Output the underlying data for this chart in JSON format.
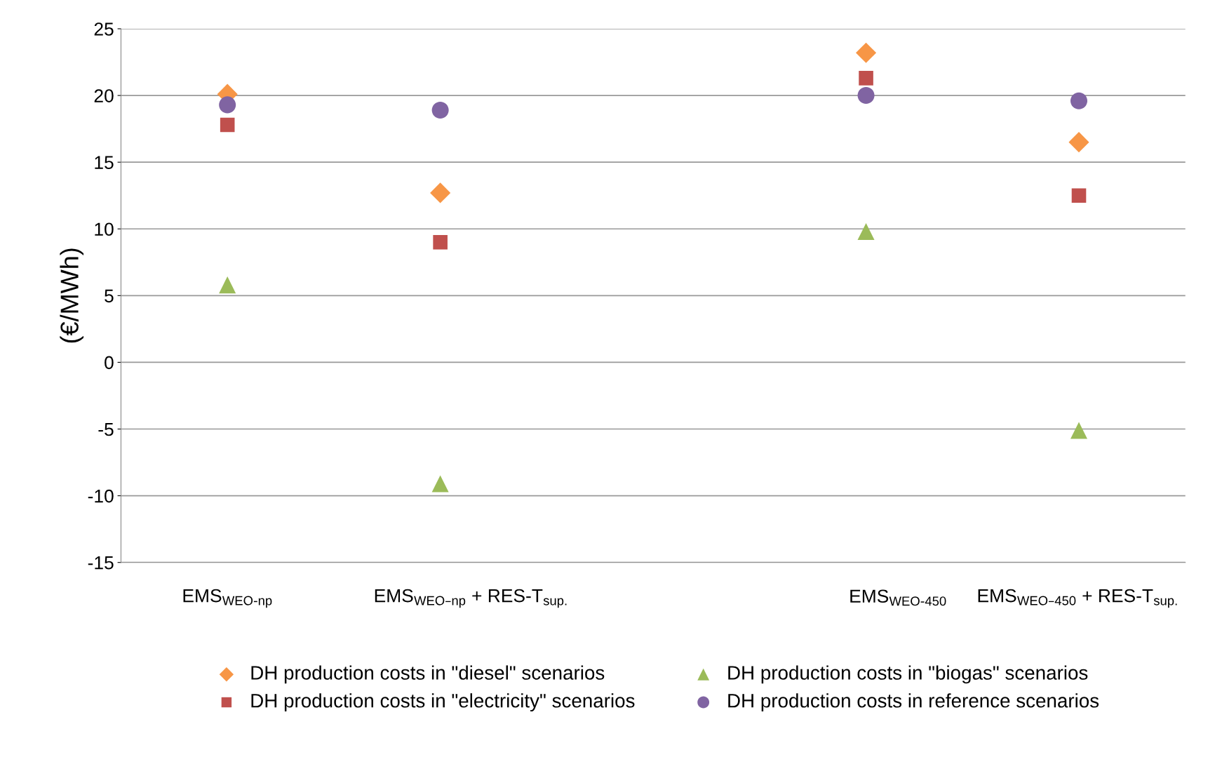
{
  "chart_data": {
    "type": "scatter",
    "ylabel": "(€/MWh)",
    "categories": [
      "EMS$_{WEO-np}$",
      "EMS$_{WEO–np}$ + RES-T$_{sup.}$",
      null,
      "EMS$_{WEO-450}$",
      "EMS$_{WEO–450}$ + RES-T$_{sup.}$"
    ],
    "series": [
      {
        "name": "DH production costs in \"diesel\" scenarios",
        "color": "#f79646",
        "marker": "diamond",
        "values": [
          20.1,
          12.7,
          null,
          23.2,
          16.5
        ]
      },
      {
        "name": "DH production costs in \"electricity\" scenarios",
        "color": "#c0504d",
        "marker": "square",
        "values": [
          17.8,
          9.0,
          null,
          21.3,
          12.5
        ]
      },
      {
        "name": "DH production costs in \"biogas\" scenarios",
        "color": "#9bbb59",
        "marker": "triangle",
        "values": [
          5.8,
          -9.1,
          null,
          9.8,
          -5.1
        ]
      },
      {
        "name": "DH production costs in reference scenarios",
        "color": "#8064a2",
        "marker": "circle",
        "values": [
          19.3,
          18.9,
          null,
          20.0,
          19.6
        ]
      }
    ],
    "ylim": [
      -15,
      25
    ],
    "yticks": [
      -15,
      -10,
      -5,
      0,
      5,
      10,
      15,
      20,
      25
    ],
    "grid": "y",
    "legend": "bottom"
  }
}
